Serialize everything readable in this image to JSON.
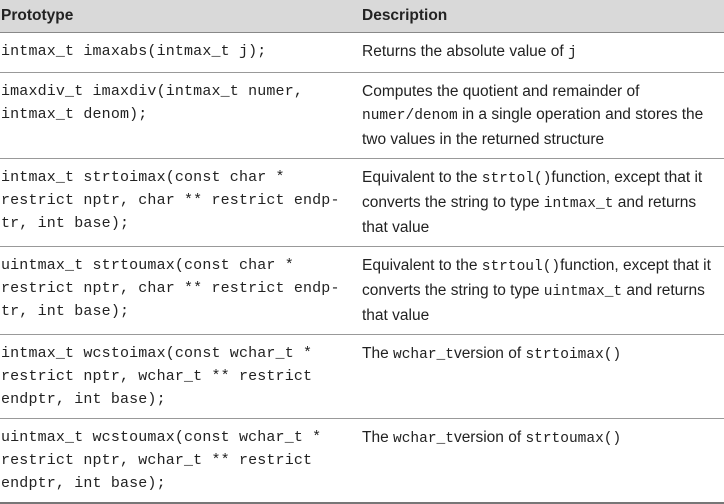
{
  "header": {
    "prototype": "Prototype",
    "description": "Description"
  },
  "rows": [
    {
      "prototype": "intmax_t imaxabs(intmax_t j);",
      "description": [
        {
          "text": "Returns the absolute value of "
        },
        {
          "code": "j"
        }
      ]
    },
    {
      "prototype": "imaxdiv_t imaxdiv(intmax_t numer,\nintmax_t denom);",
      "description": [
        {
          "text": "Computes the quotient and remainder of "
        },
        {
          "code": "numer/denom"
        },
        {
          "text": " in a single operation and stores the two values in the returned structure"
        }
      ]
    },
    {
      "prototype": "intmax_t strtoimax(const char *\nrestrict nptr, char ** restrict endp-\ntr, int base);",
      "description": [
        {
          "text": "Equivalent to the "
        },
        {
          "code": "strtol()"
        },
        {
          "text": "function, except that it converts the string to type "
        },
        {
          "code": "intmax_t"
        },
        {
          "text": " and returns that value"
        }
      ]
    },
    {
      "prototype": "uintmax_t strtoumax(const char *\nrestrict nptr, char ** restrict endp-\ntr, int base);",
      "description": [
        {
          "text": "Equivalent to the "
        },
        {
          "code": "strtoul()"
        },
        {
          "text": "function, except that it converts the string to type "
        },
        {
          "code": "uintmax_t"
        },
        {
          "text": " and returns that value"
        }
      ]
    },
    {
      "prototype": "intmax_t wcstoimax(const wchar_t *\nrestrict nptr, wchar_t ** restrict\nendptr, int base);",
      "description": [
        {
          "text": "The "
        },
        {
          "code": "wchar_t"
        },
        {
          "text": "version of "
        },
        {
          "code": "strtoimax()"
        }
      ]
    },
    {
      "prototype": "uintmax_t wcstoumax(const wchar_t *\nrestrict nptr, wchar_t ** restrict\nendptr, int base);",
      "description": [
        {
          "text": "The "
        },
        {
          "code": "wchar_t"
        },
        {
          "text": "version of "
        },
        {
          "code": "strtoumax()"
        }
      ]
    }
  ]
}
